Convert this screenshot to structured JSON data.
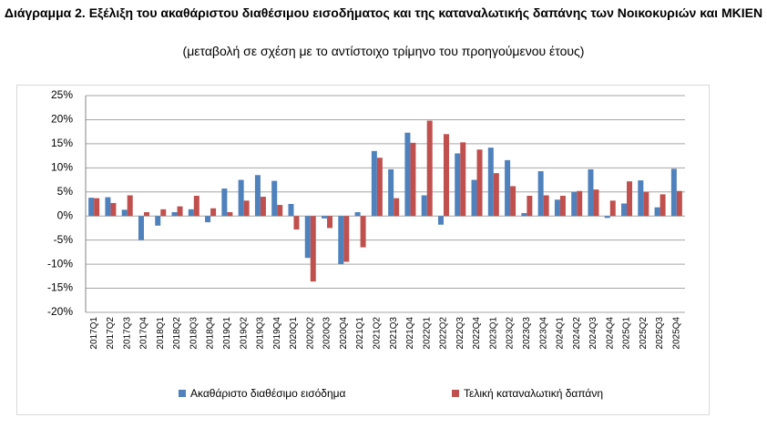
{
  "chart_data": {
    "type": "bar",
    "title": "Διάγραμμα 2. Εξέλιξη του ακαθάριστου διαθέσιμου εισοδήματος και της καταναλωτικής δαπάνης των Νοικοκυριών και ΜΚΙΕΝ",
    "subtitle": "(μεταβολή σε σχέση με το αντίστοιχο τρίμηνο του προηγούμενου έτους)",
    "categories": [
      "2017Q1",
      "2017Q2",
      "2017Q3",
      "2017Q4",
      "2018Q1",
      "2018Q2",
      "2018Q3",
      "2018Q4",
      "2019Q1",
      "2019Q2",
      "2019Q3",
      "2019Q4",
      "2020Q1",
      "2020Q2",
      "2020Q3",
      "2020Q4",
      "2021Q1",
      "2021Q2",
      "2021Q3",
      "2021Q4",
      "2022Q1",
      "2022Q2",
      "2022Q3",
      "2022Q4",
      "2023Q1",
      "2023Q2",
      "2023Q3",
      "2023Q4",
      "2024Q1",
      "2024Q2",
      "2024Q3",
      "2024Q4",
      "2025Q1",
      "2025Q2",
      "2025Q3",
      "2025Q4"
    ],
    "series": [
      {
        "name": "Ακαθάριστο διαθέσιμο εισόδημα",
        "color": "#4f81bd",
        "values": [
          3.8,
          3.9,
          1.3,
          -5.0,
          -2.0,
          0.8,
          1.4,
          -1.3,
          5.7,
          7.5,
          8.5,
          7.3,
          2.5,
          -8.7,
          -0.5,
          -10.0,
          0.8,
          13.5,
          9.7,
          17.3,
          4.3,
          -1.8,
          13.0,
          7.5,
          14.2,
          11.6,
          0.6,
          9.3,
          3.4,
          5.0,
          9.7,
          -0.4,
          2.6,
          7.4,
          1.8,
          9.8
        ]
      },
      {
        "name": "Τελική καταναλωτική δαπάνη",
        "color": "#c0504d",
        "values": [
          3.7,
          2.7,
          4.3,
          0.8,
          1.4,
          2.0,
          4.2,
          1.6,
          0.8,
          3.2,
          4.0,
          2.3,
          -2.8,
          -13.6,
          -2.5,
          -9.5,
          -6.5,
          12.1,
          3.7,
          15.2,
          19.8,
          17.0,
          15.3,
          13.8,
          8.9,
          6.2,
          4.2,
          4.3,
          4.2,
          5.2,
          5.5,
          3.2,
          7.2,
          5.0,
          4.5,
          5.2
        ]
      }
    ],
    "ylim": [
      -20,
      25
    ],
    "yticks": [
      {
        "value": -20,
        "label": "-20%"
      },
      {
        "value": -15,
        "label": "-15%"
      },
      {
        "value": -10,
        "label": "-10%"
      },
      {
        "value": -5,
        "label": "-5%"
      },
      {
        "value": 0,
        "label": "0%"
      },
      {
        "value": 5,
        "label": "5%"
      },
      {
        "value": 10,
        "label": "10%"
      },
      {
        "value": 15,
        "label": "15%"
      },
      {
        "value": 20,
        "label": "20%"
      },
      {
        "value": 25,
        "label": "25%"
      }
    ],
    "grid": true,
    "legend": "bottom"
  }
}
